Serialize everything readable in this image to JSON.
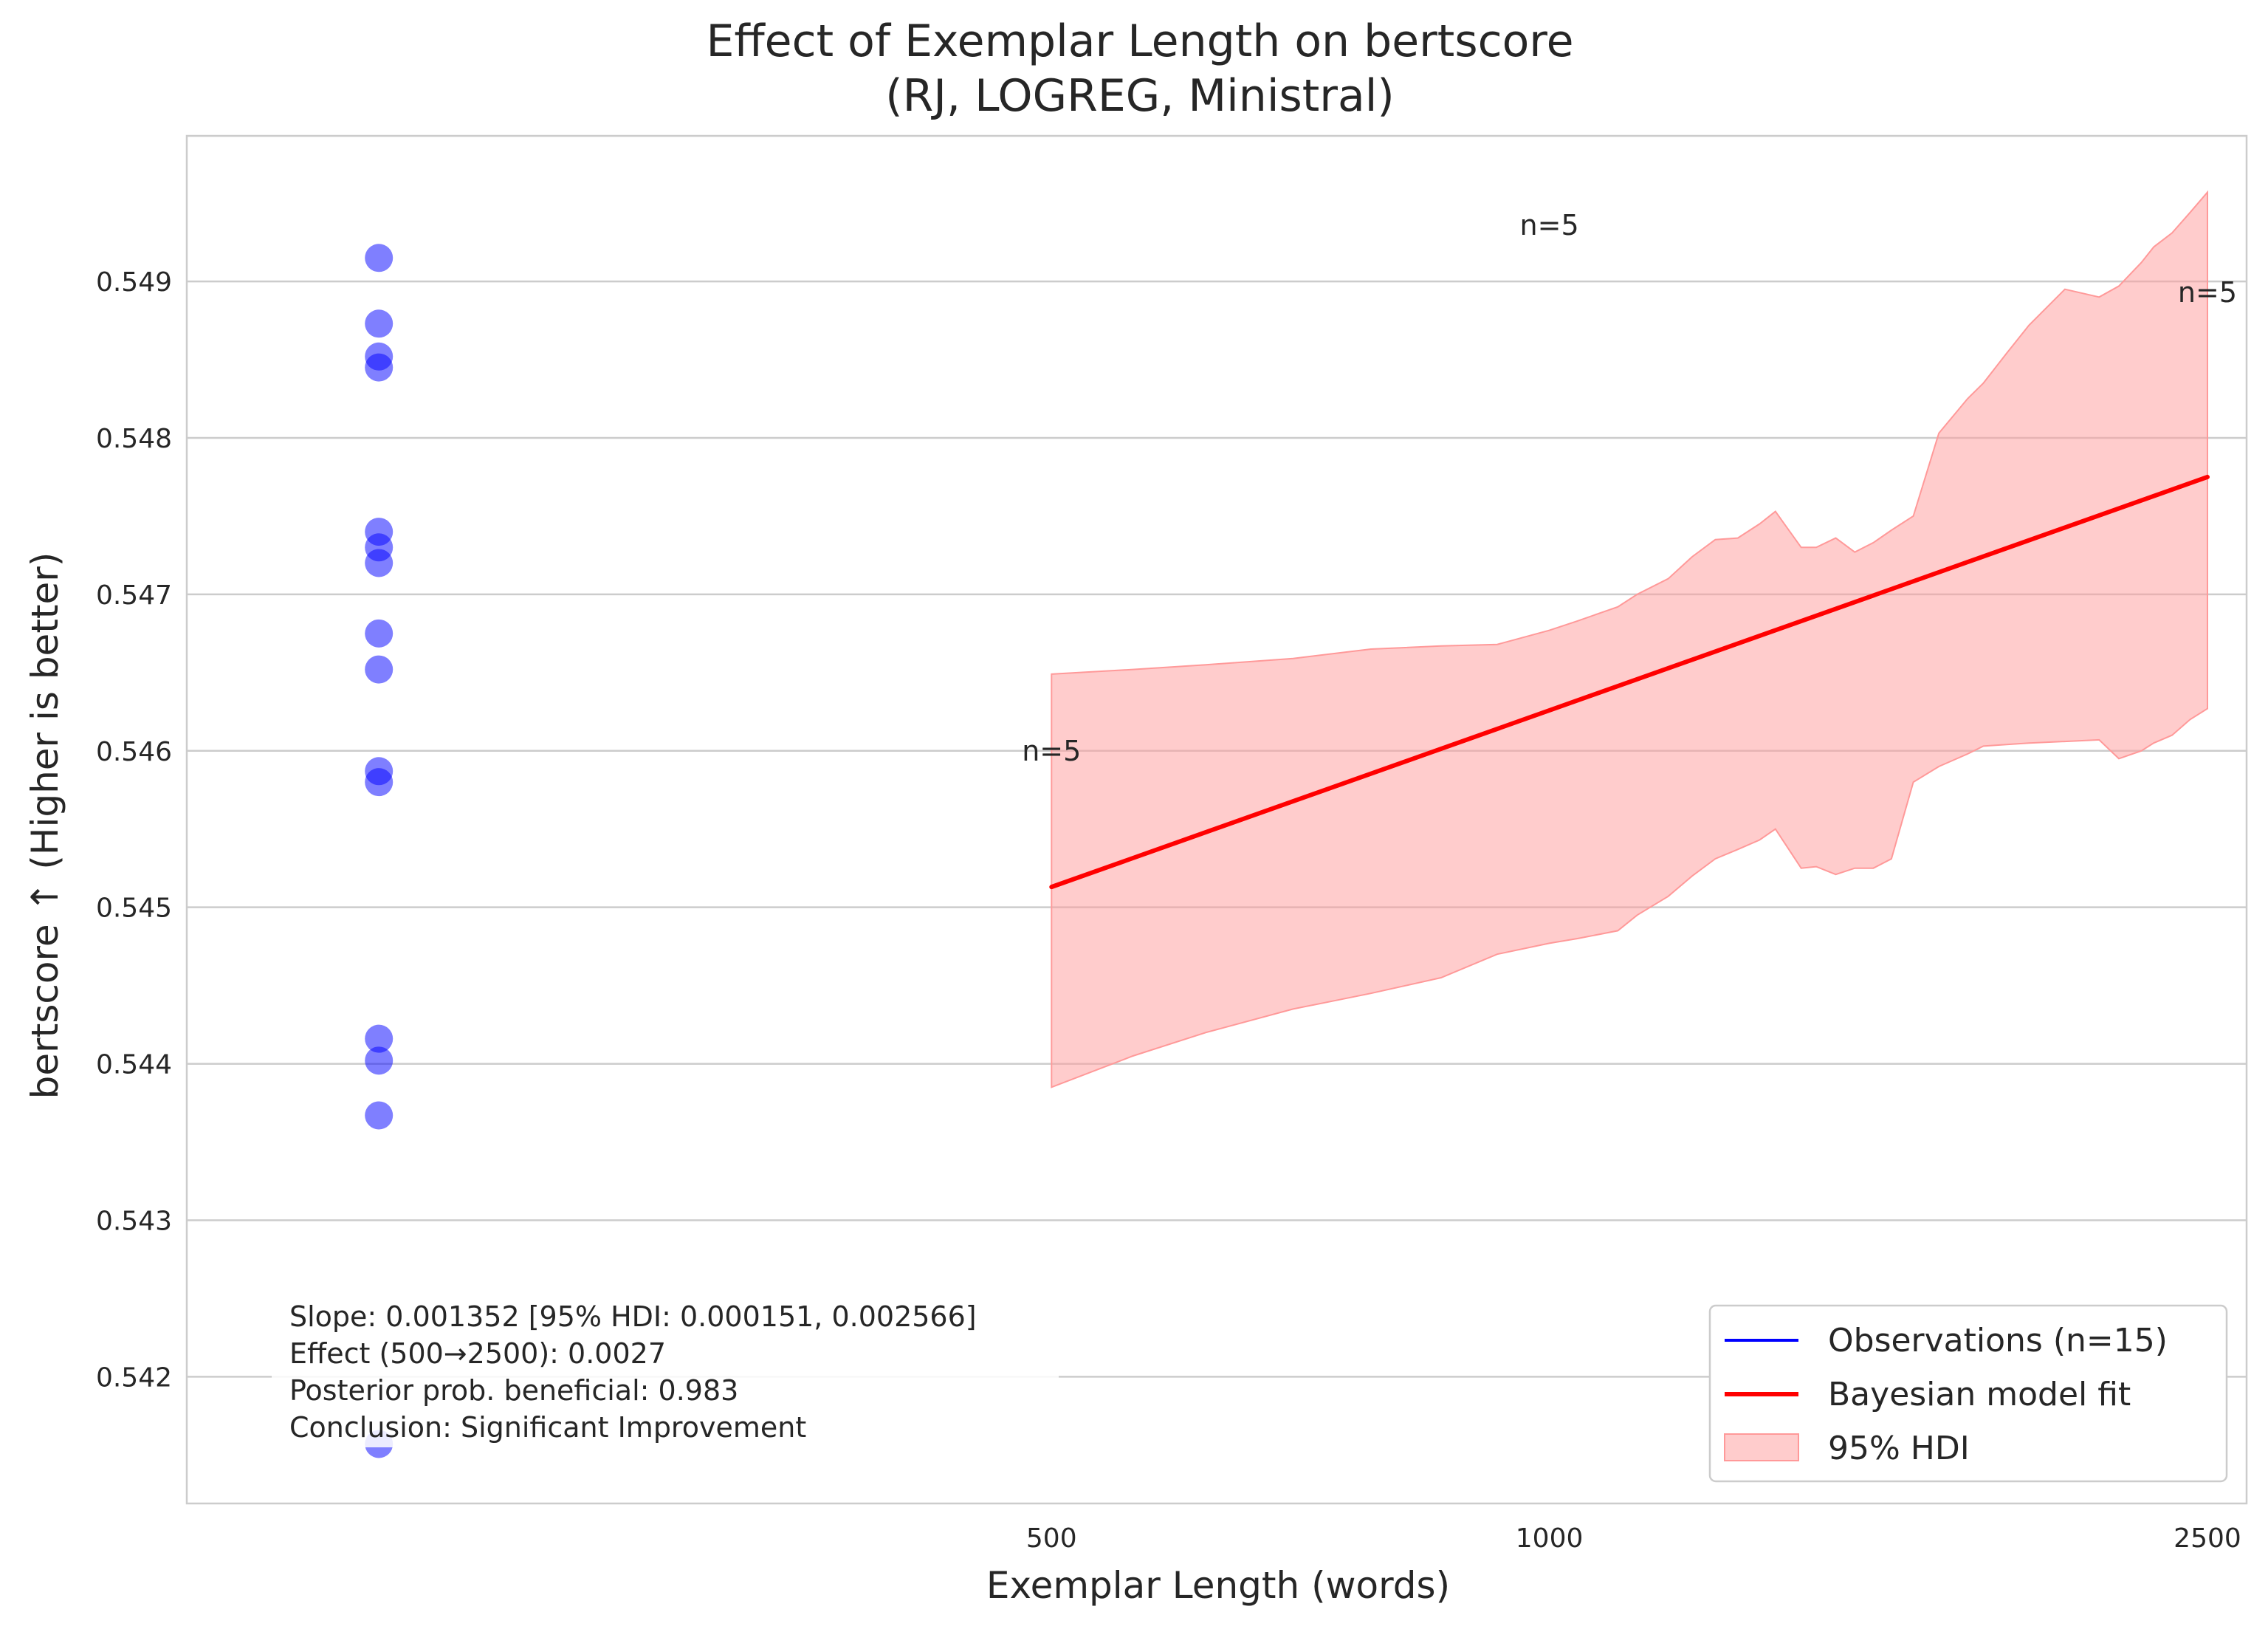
{
  "chart_data": {
    "type": "scatter",
    "title": "Effect of Exemplar Length on bertscore",
    "subtitle": "(RJ, LOGREG, Ministral)",
    "xlabel": "Exemplar Length (words)",
    "ylabel": "bertscore ↑ (Higher is better)",
    "x_scale": "log",
    "xlim": [
      150,
      2640
    ],
    "ylim": [
      0.54119,
      0.54993
    ],
    "x_ticks": [
      500,
      1000,
      2500
    ],
    "x_tick_labels": [
      "500",
      "1000",
      "2500"
    ],
    "y_ticks": [
      0.542,
      0.543,
      0.544,
      0.545,
      0.546,
      0.547,
      0.548,
      0.549
    ],
    "y_tick_labels": [
      "0.542",
      "0.543",
      "0.544",
      "0.545",
      "0.546",
      "0.547",
      "0.548",
      "0.549"
    ],
    "grid": "y-only",
    "legend_position": "lower-right",
    "observations": {
      "name": "Observations (n=15)",
      "color": "#0000ff",
      "x": [
        196,
        196,
        196,
        196,
        196,
        196,
        196,
        196,
        196,
        196,
        196,
        196,
        196,
        196,
        196
      ],
      "y": [
        0.54915,
        0.54873,
        0.54852,
        0.54845,
        0.5474,
        0.5473,
        0.5472,
        0.54675,
        0.54652,
        0.54587,
        0.5458,
        0.54416,
        0.54402,
        0.54367,
        0.54157
      ]
    },
    "fit": {
      "name": "Bayesian model fit",
      "color": "#ff0000",
      "x": [
        500,
        2500
      ],
      "y": [
        0.54513,
        0.54775
      ]
    },
    "hdi": {
      "name": "95% HDI",
      "color": "#ff9999",
      "x": [
        500,
        560,
        620,
        700,
        780,
        860,
        930,
        1000,
        1040,
        1100,
        1130,
        1180,
        1220,
        1260,
        1300,
        1340,
        1370,
        1420,
        1450,
        1490,
        1530,
        1570,
        1610,
        1660,
        1720,
        1790,
        1830,
        1890,
        1950,
        2050,
        2150,
        2210,
        2280,
        2320,
        2380,
        2440,
        2500
      ],
      "lower": [
        0.54385,
        0.54405,
        0.5442,
        0.54435,
        0.54445,
        0.54455,
        0.5447,
        0.54477,
        0.5448,
        0.54485,
        0.54495,
        0.54507,
        0.5452,
        0.54531,
        0.54537,
        0.54543,
        0.5455,
        0.54525,
        0.54526,
        0.54521,
        0.54525,
        0.54525,
        0.54531,
        0.5458,
        0.5459,
        0.54598,
        0.54603,
        0.54604,
        0.54605,
        0.54606,
        0.54607,
        0.54595,
        0.546,
        0.54605,
        0.5461,
        0.5462,
        0.54627
      ],
      "upper": [
        0.54649,
        0.54652,
        0.54655,
        0.54659,
        0.54665,
        0.54667,
        0.54668,
        0.54677,
        0.54683,
        0.54692,
        0.547,
        0.5471,
        0.54724,
        0.54735,
        0.54736,
        0.54745,
        0.54753,
        0.5473,
        0.5473,
        0.54736,
        0.54727,
        0.54733,
        0.54741,
        0.5475,
        0.54803,
        0.54825,
        0.54835,
        0.54854,
        0.54872,
        0.54895,
        0.5489,
        0.54897,
        0.54912,
        0.54922,
        0.54931,
        0.54944,
        0.54957
      ]
    },
    "annotations": [
      {
        "text": "n=5",
        "x": 500,
        "y": 0.546
      },
      {
        "text": "n=5",
        "x": 1000,
        "y": 0.54936
      },
      {
        "text": "n=5",
        "x": 2500,
        "y": 0.54893
      }
    ],
    "stats_box": {
      "lines": [
        "Slope: 0.001352 [95% HDI: 0.000151, 0.002566]",
        "Effect (500→2500): 0.0027",
        "Posterior prob. beneficial: 0.983",
        "Conclusion: Significant Improvement"
      ]
    },
    "legend": [
      {
        "label": "Observations (n=15)",
        "kind": "line",
        "color": "#0000ff"
      },
      {
        "label": "Bayesian model fit",
        "kind": "line",
        "color": "#ff0000"
      },
      {
        "label": "95% HDI",
        "kind": "patch",
        "color": "#ff9999"
      }
    ]
  }
}
